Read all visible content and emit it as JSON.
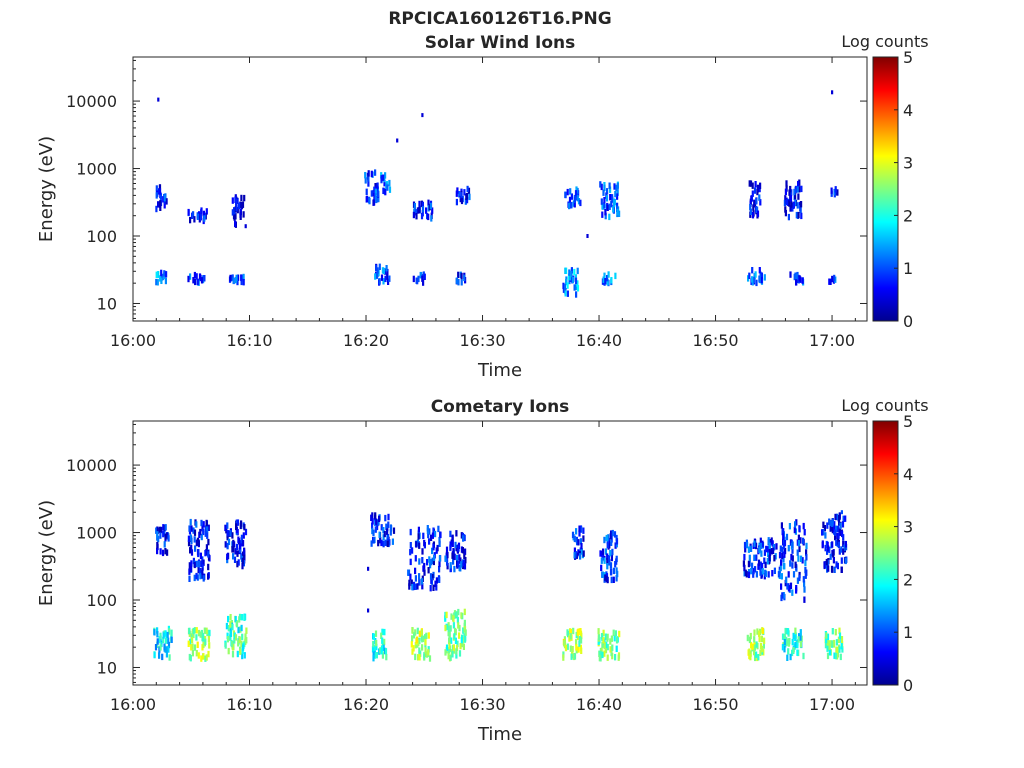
{
  "figure": {
    "title": "RPCICA160126T16.PNG"
  },
  "chart_data": [
    {
      "type": "heatmap",
      "title": "Solar Wind Ions",
      "xlabel": "Time",
      "ylabel": "Energy (eV)",
      "y_scale": "log",
      "x_range": [
        "16:00",
        "17:03"
      ],
      "y_range": [
        5.5,
        45000
      ],
      "x_ticks": [
        "16:00",
        "16:10",
        "16:20",
        "16:30",
        "16:40",
        "16:50",
        "17:00"
      ],
      "y_ticks": [
        "10",
        "100",
        "1000",
        "10000"
      ],
      "colorbar": {
        "label": "Log counts",
        "range": [
          0,
          5
        ],
        "ticks": [
          "0",
          "1",
          "2",
          "3",
          "4",
          "5"
        ]
      },
      "grid": false,
      "clusters": [
        {
          "t_start": "16:01:50",
          "t_end": "16:02:30",
          "e_min": 200,
          "e_max": 700,
          "log_counts": 0.6
        },
        {
          "t_start": "16:02:30",
          "t_end": "16:03:00",
          "e_min": 220,
          "e_max": 450,
          "log_counts": 0.9
        },
        {
          "t_start": "16:04:40",
          "t_end": "16:06:30",
          "e_min": 150,
          "e_max": 280,
          "log_counts": 0.6
        },
        {
          "t_start": "16:08:20",
          "t_end": "16:09:40",
          "e_min": 130,
          "e_max": 420,
          "log_counts": 0.3
        },
        {
          "t_start": "16:19:50",
          "t_end": "16:21:10",
          "e_min": 250,
          "e_max": 1000,
          "log_counts": 0.8
        },
        {
          "t_start": "16:21:10",
          "t_end": "16:22:10",
          "e_min": 380,
          "e_max": 900,
          "log_counts": 1.2
        },
        {
          "t_start": "16:24:00",
          "t_end": "16:25:50",
          "e_min": 160,
          "e_max": 350,
          "log_counts": 0.7
        },
        {
          "t_start": "16:27:40",
          "t_end": "16:29:00",
          "e_min": 280,
          "e_max": 560,
          "log_counts": 0.8
        },
        {
          "t_start": "16:37:00",
          "t_end": "16:38:30",
          "e_min": 240,
          "e_max": 550,
          "log_counts": 1.0
        },
        {
          "t_start": "16:40:00",
          "t_end": "16:41:50",
          "e_min": 170,
          "e_max": 650,
          "log_counts": 1.0
        },
        {
          "t_start": "16:52:50",
          "t_end": "16:54:00",
          "e_min": 160,
          "e_max": 680,
          "log_counts": 0.6
        },
        {
          "t_start": "16:55:50",
          "t_end": "16:57:30",
          "e_min": 170,
          "e_max": 700,
          "log_counts": 0.6
        },
        {
          "t_start": "16:59:50",
          "t_end": "17:00:40",
          "e_min": 350,
          "e_max": 550,
          "log_counts": 0.7
        },
        {
          "t_start": "16:01:50",
          "t_end": "16:03:00",
          "e_min": 18,
          "e_max": 35,
          "log_counts": 1.3
        },
        {
          "t_start": "16:04:40",
          "t_end": "16:06:20",
          "e_min": 18,
          "e_max": 30,
          "log_counts": 1.0
        },
        {
          "t_start": "16:08:10",
          "t_end": "16:09:40",
          "e_min": 18,
          "e_max": 30,
          "log_counts": 0.8
        },
        {
          "t_start": "16:20:40",
          "t_end": "16:22:10",
          "e_min": 18,
          "e_max": 40,
          "log_counts": 1.0
        },
        {
          "t_start": "16:24:00",
          "t_end": "16:25:10",
          "e_min": 18,
          "e_max": 30,
          "log_counts": 0.8
        },
        {
          "t_start": "16:27:40",
          "t_end": "16:28:40",
          "e_min": 18,
          "e_max": 30,
          "log_counts": 0.8
        },
        {
          "t_start": "16:36:50",
          "t_end": "16:38:20",
          "e_min": 12,
          "e_max": 35,
          "log_counts": 1.3
        },
        {
          "t_start": "16:40:10",
          "t_end": "16:41:30",
          "e_min": 18,
          "e_max": 30,
          "log_counts": 1.3
        },
        {
          "t_start": "16:52:40",
          "t_end": "16:54:20",
          "e_min": 18,
          "e_max": 35,
          "log_counts": 1.1
        },
        {
          "t_start": "16:56:20",
          "t_end": "16:57:50",
          "e_min": 18,
          "e_max": 30,
          "log_counts": 0.8
        },
        {
          "t_start": "16:59:40",
          "t_end": "17:00:30",
          "e_min": 18,
          "e_max": 27,
          "log_counts": 0.8
        }
      ],
      "points": [
        {
          "t": "16:02:10",
          "e": 10500,
          "log_counts": 0.4
        },
        {
          "t": "16:09:40",
          "e": 140,
          "log_counts": 0.4
        },
        {
          "t": "16:22:40",
          "e": 2600,
          "log_counts": 0.4
        },
        {
          "t": "16:24:50",
          "e": 6200,
          "log_counts": 0.4
        },
        {
          "t": "16:39:00",
          "e": 100,
          "log_counts": 0.4
        },
        {
          "t": "17:00:00",
          "e": 13500,
          "log_counts": 0.4
        }
      ]
    },
    {
      "type": "heatmap",
      "title": "Cometary Ions",
      "xlabel": "Time",
      "ylabel": "Energy (eV)",
      "y_scale": "log",
      "x_range": [
        "16:00",
        "17:03"
      ],
      "y_range": [
        5.5,
        45000
      ],
      "x_ticks": [
        "16:00",
        "16:10",
        "16:20",
        "16:30",
        "16:40",
        "16:50",
        "17:00"
      ],
      "y_ticks": [
        "10",
        "100",
        "1000",
        "10000"
      ],
      "colorbar": {
        "label": "Log counts",
        "range": [
          0,
          5
        ],
        "ticks": [
          "0",
          "1",
          "2",
          "3",
          "4",
          "5"
        ]
      },
      "grid": false,
      "clusters": [
        {
          "t_start": "16:01:50",
          "t_end": "16:03:10",
          "e_min": 430,
          "e_max": 1350,
          "log_counts": 0.7
        },
        {
          "t_start": "16:04:40",
          "t_end": "16:06:40",
          "e_min": 180,
          "e_max": 1600,
          "log_counts": 0.7
        },
        {
          "t_start": "16:07:50",
          "t_end": "16:09:50",
          "e_min": 280,
          "e_max": 1600,
          "log_counts": 0.6
        },
        {
          "t_start": "16:20:20",
          "t_end": "16:22:30",
          "e_min": 600,
          "e_max": 2000,
          "log_counts": 0.7
        },
        {
          "t_start": "16:23:30",
          "t_end": "16:26:30",
          "e_min": 130,
          "e_max": 1300,
          "log_counts": 0.7
        },
        {
          "t_start": "16:26:40",
          "t_end": "16:28:40",
          "e_min": 250,
          "e_max": 1200,
          "log_counts": 0.7
        },
        {
          "t_start": "16:37:40",
          "t_end": "16:38:50",
          "e_min": 380,
          "e_max": 1300,
          "log_counts": 0.8
        },
        {
          "t_start": "16:40:00",
          "t_end": "16:41:40",
          "e_min": 170,
          "e_max": 1100,
          "log_counts": 0.9
        },
        {
          "t_start": "16:52:20",
          "t_end": "16:55:20",
          "e_min": 200,
          "e_max": 900,
          "log_counts": 0.8
        },
        {
          "t_start": "16:55:20",
          "t_end": "16:58:00",
          "e_min": 90,
          "e_max": 1600,
          "log_counts": 0.8
        },
        {
          "t_start": "16:59:00",
          "t_end": "17:01:20",
          "e_min": 250,
          "e_max": 2000,
          "log_counts": 0.6
        },
        {
          "t_start": "16:01:40",
          "t_end": "16:03:30",
          "e_min": 12,
          "e_max": 42,
          "log_counts": 1.8
        },
        {
          "t_start": "16:04:40",
          "t_end": "16:06:40",
          "e_min": 12,
          "e_max": 40,
          "log_counts": 2.6
        },
        {
          "t_start": "16:07:50",
          "t_end": "16:09:50",
          "e_min": 12,
          "e_max": 65,
          "log_counts": 2.2
        },
        {
          "t_start": "16:20:30",
          "t_end": "16:21:50",
          "e_min": 12,
          "e_max": 40,
          "log_counts": 2.0
        },
        {
          "t_start": "16:23:50",
          "t_end": "16:25:40",
          "e_min": 12,
          "e_max": 40,
          "log_counts": 2.7
        },
        {
          "t_start": "16:26:40",
          "t_end": "16:28:40",
          "e_min": 12,
          "e_max": 75,
          "log_counts": 2.4
        },
        {
          "t_start": "16:36:50",
          "t_end": "16:38:40",
          "e_min": 12,
          "e_max": 40,
          "log_counts": 2.7
        },
        {
          "t_start": "16:39:50",
          "t_end": "16:41:50",
          "e_min": 12,
          "e_max": 40,
          "log_counts": 2.4
        },
        {
          "t_start": "16:52:40",
          "t_end": "16:54:20",
          "e_min": 12,
          "e_max": 40,
          "log_counts": 2.6
        },
        {
          "t_start": "16:55:40",
          "t_end": "16:57:40",
          "e_min": 12,
          "e_max": 40,
          "log_counts": 2.0
        },
        {
          "t_start": "16:59:20",
          "t_end": "17:01:00",
          "e_min": 12,
          "e_max": 40,
          "log_counts": 2.4
        }
      ],
      "points": [
        {
          "t": "16:20:10",
          "e": 290,
          "log_counts": 0.4
        },
        {
          "t": "16:20:10",
          "e": 70,
          "log_counts": 0.4
        },
        {
          "t": "17:00:50",
          "e": 2000,
          "log_counts": 1.0
        }
      ]
    }
  ]
}
